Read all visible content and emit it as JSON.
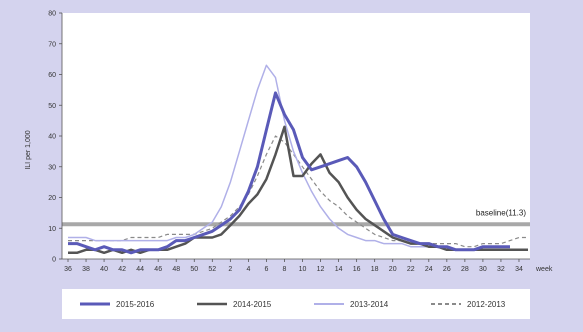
{
  "chart_data": {
    "type": "line",
    "title": "",
    "xlabel": "week",
    "ylabel": "ILI per 1,000",
    "ylim": [
      0,
      80
    ],
    "yticks": [
      0,
      10,
      20,
      30,
      40,
      50,
      60,
      70,
      80
    ],
    "categories": [
      "36",
      "37",
      "38",
      "39",
      "40",
      "41",
      "42",
      "43",
      "44",
      "45",
      "46",
      "47",
      "48",
      "49",
      "50",
      "51",
      "52",
      "1",
      "2",
      "3",
      "4",
      "5",
      "6",
      "7",
      "8",
      "9",
      "10",
      "11",
      "12",
      "13",
      "14",
      "15",
      "16",
      "17",
      "18",
      "19",
      "20",
      "21",
      "22",
      "23",
      "24",
      "25",
      "26",
      "27",
      "28",
      "29",
      "30",
      "31",
      "32",
      "33",
      "34",
      "35"
    ],
    "tick_labels": [
      "36",
      "38",
      "40",
      "42",
      "44",
      "46",
      "48",
      "50",
      "52",
      "2",
      "4",
      "6",
      "8",
      "10",
      "12",
      "14",
      "16",
      "18",
      "20",
      "22",
      "24",
      "26",
      "28",
      "30",
      "32",
      "34"
    ],
    "grid": false,
    "legend_position": "bottom",
    "baseline": {
      "value": 11.3,
      "label": "baseline(11.3)",
      "color": "#a8a8a8"
    },
    "series": [
      {
        "name": "2015-2016",
        "color": "#5a5ab8",
        "dash": "",
        "width": 3,
        "values": [
          5,
          5,
          4,
          3,
          4,
          3,
          3,
          2,
          3,
          3,
          3,
          4,
          6,
          6,
          7,
          8,
          9,
          11,
          13,
          16,
          22,
          30,
          42,
          54,
          47,
          42,
          33,
          29,
          30,
          31,
          32,
          33,
          30,
          25,
          19,
          13,
          8,
          7,
          6,
          5,
          5,
          4,
          4,
          3,
          3,
          3,
          4,
          4,
          4,
          4,
          null,
          null
        ]
      },
      {
        "name": "2014-2015",
        "color": "#545454",
        "dash": "",
        "width": 2.5,
        "values": [
          2,
          2,
          3,
          3,
          2,
          3,
          2,
          3,
          2,
          3,
          3,
          3,
          4,
          5,
          7,
          7,
          7,
          8,
          11,
          14,
          18,
          21,
          26,
          34,
          43,
          27,
          27,
          31,
          34,
          28,
          25,
          20,
          16,
          13,
          11,
          9,
          7,
          6,
          5,
          5,
          4,
          4,
          3,
          3,
          3,
          3,
          3,
          3,
          3,
          3,
          3,
          3
        ]
      },
      {
        "name": "2013-2014",
        "color": "#b0b0e8",
        "dash": "",
        "width": 1.5,
        "values": [
          7,
          7,
          7,
          6,
          6,
          6,
          6,
          6,
          6,
          6,
          6,
          6,
          7,
          7,
          8,
          10,
          12,
          17,
          25,
          35,
          45,
          55,
          63,
          59,
          45,
          35,
          28,
          22,
          17,
          13,
          10,
          8,
          7,
          6,
          6,
          5,
          5,
          5,
          4,
          4,
          4,
          4,
          3,
          3,
          3,
          3,
          3,
          3,
          3,
          3,
          3,
          3
        ]
      },
      {
        "name": "2012-2013",
        "color": "#8a8a8a",
        "dash": "4,3",
        "width": 1.2,
        "values": [
          6,
          6,
          6,
          6,
          6,
          6,
          6,
          7,
          7,
          7,
          7,
          8,
          8,
          8,
          8,
          9,
          10,
          12,
          14,
          17,
          21,
          27,
          34,
          40,
          38,
          34,
          30,
          26,
          22,
          19,
          17,
          14,
          12,
          10,
          8,
          7,
          6,
          6,
          5,
          5,
          5,
          5,
          5,
          5,
          4,
          4,
          5,
          5,
          5,
          6,
          7,
          7
        ]
      }
    ]
  }
}
